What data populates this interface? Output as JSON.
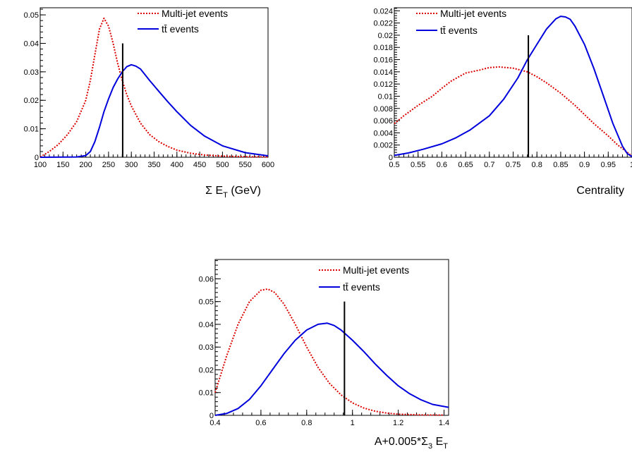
{
  "chart_data": [
    {
      "type": "line",
      "xlabel": "Σ E_T (GeV)",
      "xlabel_main": "Σ E",
      "xlabel_sub": "T",
      "xlabel_tail": " (GeV)",
      "xlim": [
        100,
        600
      ],
      "ylim": [
        0,
        0.0525
      ],
      "x_ticks": [
        "100",
        "150",
        "200",
        "250",
        "300",
        "350",
        "400",
        "450",
        "500",
        "550",
        "600"
      ],
      "y_ticks": [
        "0",
        "0.01",
        "0.02",
        "0.03",
        "0.04",
        "0.05"
      ],
      "y_tick_values": [
        0,
        0.01,
        0.02,
        0.03,
        0.04,
        0.05
      ],
      "x_tick_values": [
        100,
        150,
        200,
        250,
        300,
        350,
        400,
        450,
        500,
        550,
        600
      ],
      "cut_line": {
        "x": 281,
        "y_top": 0.04
      },
      "legend": {
        "position": "top-right",
        "entries": [
          "Multi-jet events",
          "tt̄ events"
        ]
      },
      "series": [
        {
          "name": "Multi-jet events",
          "color": "#dd0000",
          "style": "dotted",
          "x": [
            100,
            120,
            140,
            160,
            180,
            200,
            210,
            220,
            230,
            240,
            250,
            260,
            270,
            280,
            290,
            300,
            320,
            340,
            360,
            380,
            400,
            430,
            460,
            500,
            550,
            600
          ],
          "y": [
            0.0001,
            0.002,
            0.0045,
            0.008,
            0.0125,
            0.02,
            0.027,
            0.036,
            0.045,
            0.0488,
            0.046,
            0.04,
            0.033,
            0.027,
            0.022,
            0.018,
            0.012,
            0.008,
            0.0055,
            0.0038,
            0.0025,
            0.0014,
            0.0008,
            0.0004,
            0.0002,
            0.0001
          ]
        },
        {
          "name": "tt̄ events",
          "color": "#0000dd",
          "style": "solid",
          "x": [
            100,
            180,
            200,
            210,
            220,
            230,
            240,
            250,
            260,
            270,
            280,
            290,
            300,
            310,
            320,
            330,
            340,
            360,
            380,
            400,
            430,
            460,
            500,
            550,
            600
          ],
          "y": [
            0.0,
            0.0001,
            0.0006,
            0.002,
            0.0055,
            0.0105,
            0.016,
            0.0205,
            0.0245,
            0.0275,
            0.03,
            0.0318,
            0.0325,
            0.032,
            0.031,
            0.029,
            0.027,
            0.0232,
            0.0195,
            0.016,
            0.0112,
            0.0075,
            0.004,
            0.0016,
            0.0005
          ]
        }
      ]
    },
    {
      "type": "line",
      "xlabel": "Centrality",
      "xlim": [
        0.5,
        1.0
      ],
      "ylim": [
        0,
        0.0245
      ],
      "x_ticks": [
        "0.5",
        "0.55",
        "0.6",
        "0.65",
        "0.7",
        "0.75",
        "0.8",
        "0.85",
        "0.9",
        "0.95",
        "1"
      ],
      "x_tick_values": [
        0.5,
        0.55,
        0.6,
        0.65,
        0.7,
        0.75,
        0.8,
        0.85,
        0.9,
        0.95,
        1.0
      ],
      "y_ticks": [
        "0",
        "0.002",
        "0.004",
        "0.006",
        "0.008",
        "0.01",
        "0.012",
        "0.014",
        "0.016",
        "0.018",
        "0.02",
        "0.022",
        "0.024"
      ],
      "y_tick_values": [
        0,
        0.002,
        0.004,
        0.006,
        0.008,
        0.01,
        0.012,
        0.014,
        0.016,
        0.018,
        0.02,
        0.022,
        0.024
      ],
      "cut_line": {
        "x": 0.782,
        "y_top": 0.02
      },
      "legend": {
        "position": "top-left",
        "entries": [
          "Multi-jet events",
          "tt̄ events"
        ]
      },
      "series": [
        {
          "name": "Multi-jet events",
          "color": "#dd0000",
          "style": "dotted",
          "x": [
            0.5,
            0.52,
            0.55,
            0.58,
            0.6,
            0.62,
            0.65,
            0.68,
            0.7,
            0.72,
            0.75,
            0.78,
            0.8,
            0.82,
            0.85,
            0.88,
            0.9,
            0.92,
            0.95,
            0.97,
            0.99,
            1.0
          ],
          "y": [
            0.0055,
            0.0068,
            0.0085,
            0.01,
            0.0113,
            0.0125,
            0.0138,
            0.0143,
            0.0147,
            0.0148,
            0.0146,
            0.014,
            0.0132,
            0.0122,
            0.0105,
            0.0085,
            0.007,
            0.0055,
            0.0035,
            0.002,
            0.0008,
            0.0002
          ]
        },
        {
          "name": "tt̄ events",
          "color": "#0000dd",
          "style": "solid",
          "x": [
            0.5,
            0.53,
            0.56,
            0.6,
            0.63,
            0.66,
            0.7,
            0.73,
            0.76,
            0.78,
            0.8,
            0.82,
            0.84,
            0.85,
            0.86,
            0.87,
            0.88,
            0.9,
            0.92,
            0.94,
            0.96,
            0.98,
            0.99,
            1.0
          ],
          "y": [
            0.0003,
            0.0007,
            0.0013,
            0.0022,
            0.0032,
            0.0045,
            0.0068,
            0.0095,
            0.013,
            0.016,
            0.0185,
            0.021,
            0.0227,
            0.0231,
            0.023,
            0.0226,
            0.0215,
            0.0185,
            0.0145,
            0.01,
            0.0055,
            0.0018,
            0.0006,
            0.0001
          ]
        }
      ]
    },
    {
      "type": "line",
      "xlabel": "A+0.005*Σ_3 E_T",
      "xlabel_main": "A+0.005*Σ",
      "xlabel_sub1": "3",
      "xlabel_mid": " E",
      "xlabel_sub2": "T",
      "xlim": [
        0.4,
        1.42
      ],
      "ylim": [
        0,
        0.0685
      ],
      "x_ticks": [
        "0.4",
        "0.6",
        "0.8",
        "1",
        "1.2",
        "1.4"
      ],
      "x_tick_values": [
        0.4,
        0.6,
        0.8,
        1.0,
        1.2,
        1.4
      ],
      "y_ticks": [
        "0",
        "0.01",
        "0.02",
        "0.03",
        "0.04",
        "0.05",
        "0.06"
      ],
      "y_tick_values": [
        0,
        0.01,
        0.02,
        0.03,
        0.04,
        0.05,
        0.06
      ],
      "cut_line": {
        "x": 0.965,
        "y_top": 0.05
      },
      "legend": {
        "position": "top-right",
        "entries": [
          "Multi-jet events",
          "tt̄ events"
        ]
      },
      "series": [
        {
          "name": "Multi-jet events",
          "color": "#dd0000",
          "style": "dotted",
          "x": [
            0.4,
            0.45,
            0.5,
            0.55,
            0.6,
            0.63,
            0.66,
            0.7,
            0.75,
            0.8,
            0.85,
            0.9,
            0.95,
            1.0,
            1.05,
            1.1,
            1.15,
            1.2,
            1.3,
            1.4
          ],
          "y": [
            0.01,
            0.026,
            0.04,
            0.05,
            0.055,
            0.0555,
            0.054,
            0.049,
            0.04,
            0.03,
            0.021,
            0.014,
            0.009,
            0.0055,
            0.0032,
            0.0018,
            0.001,
            0.0005,
            0.0002,
            0.0001
          ]
        },
        {
          "name": "tt̄ events",
          "color": "#0000dd",
          "style": "solid",
          "x": [
            0.4,
            0.45,
            0.5,
            0.55,
            0.6,
            0.65,
            0.7,
            0.75,
            0.8,
            0.85,
            0.89,
            0.92,
            0.95,
            1.0,
            1.05,
            1.1,
            1.15,
            1.2,
            1.25,
            1.3,
            1.35,
            1.42
          ],
          "y": [
            0.0,
            0.0008,
            0.003,
            0.007,
            0.013,
            0.02,
            0.027,
            0.033,
            0.0375,
            0.04,
            0.0405,
            0.0395,
            0.0375,
            0.033,
            0.028,
            0.0225,
            0.0175,
            0.013,
            0.0095,
            0.0068,
            0.0048,
            0.0035
          ]
        }
      ]
    }
  ]
}
